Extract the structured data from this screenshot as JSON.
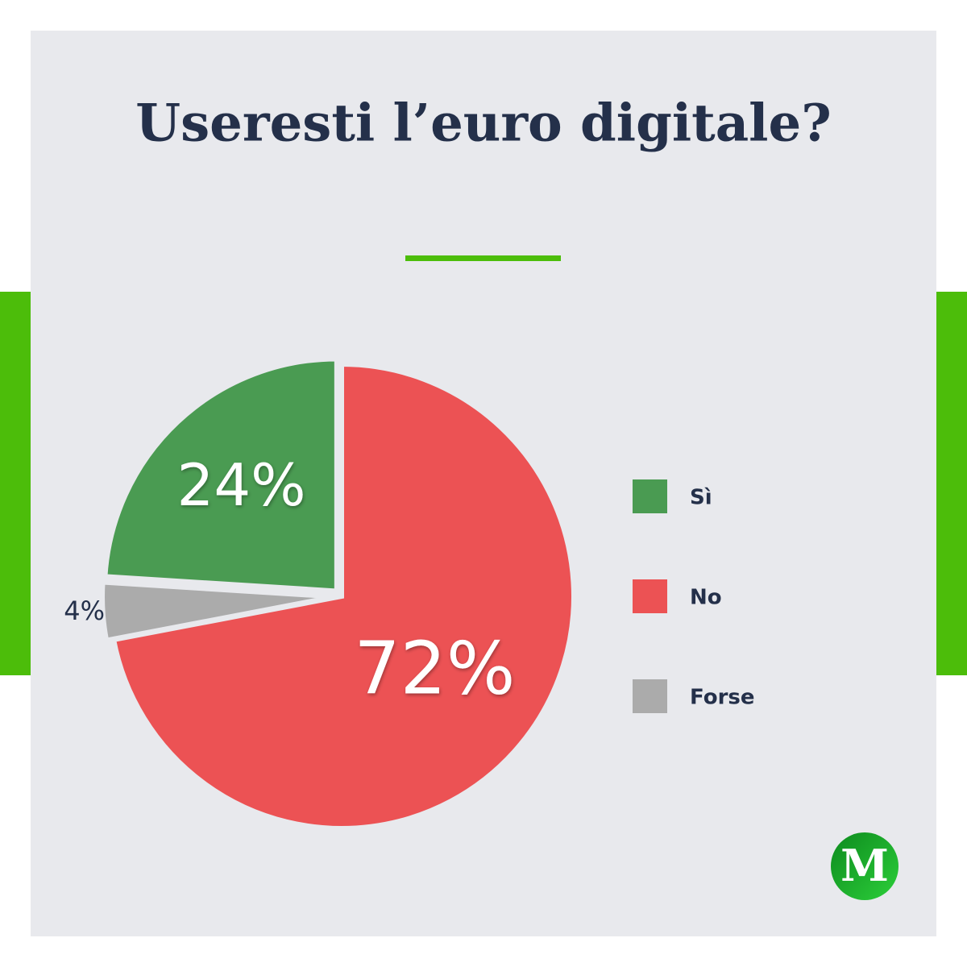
{
  "chart_data": {
    "type": "pie",
    "title": "Useresti l’euro digitale?",
    "categories": [
      "Sì",
      "No",
      "Forse"
    ],
    "values": [
      24,
      72,
      4
    ],
    "value_labels": [
      "24%",
      "72%",
      "4%"
    ],
    "colors": [
      "#4a9b52",
      "#ec5254",
      "#ababab"
    ],
    "start_category": 1,
    "direction": "clockwise",
    "legend": "right",
    "logo": "M"
  }
}
